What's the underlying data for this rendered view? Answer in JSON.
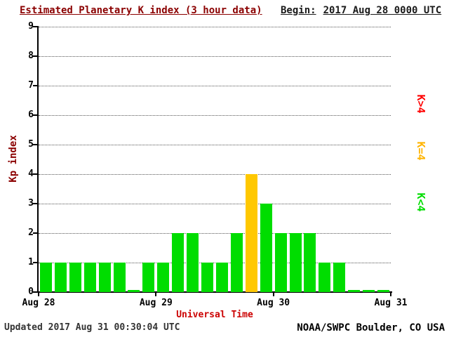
{
  "header": {
    "title": "Estimated Planetary K index (3 hour data)",
    "begin_label": "Begin:",
    "begin_value": "2017 Aug 28 0000 UTC"
  },
  "footer": {
    "updated": "Updated 2017 Aug 31 00:30:04 UTC",
    "source": "NOAA/SWPC Boulder, CO USA"
  },
  "legend": [
    {
      "label": "K>4",
      "color": "#ff0000"
    },
    {
      "label": "K=4",
      "color": "#ffb400"
    },
    {
      "label": "K<4",
      "color": "#00dd00"
    }
  ],
  "chart_data": {
    "type": "bar",
    "title": "Estimated Planetary K index (3 hour data)",
    "xlabel": "Universal Time",
    "ylabel": "Kp index",
    "ylim": [
      0,
      9
    ],
    "yticks": [
      0,
      1,
      2,
      3,
      4,
      5,
      6,
      7,
      8,
      9
    ],
    "xticks": [
      "Aug 28",
      "Aug 29",
      "Aug 30",
      "Aug 31"
    ],
    "grid": "horizontal-dotted",
    "bar_interval_hours": 3,
    "values": [
      1,
      1,
      1,
      1,
      1,
      1,
      0,
      1,
      1,
      2,
      2,
      1,
      1,
      2,
      4,
      3,
      2,
      2,
      2,
      1,
      1,
      0,
      0,
      0
    ],
    "colors": {
      "low": "#00dd00",
      "mid": "#ffc800",
      "high": "#ff0000"
    },
    "color_rule": "green if Kp<4, yellow if Kp=4, red if Kp>4"
  }
}
